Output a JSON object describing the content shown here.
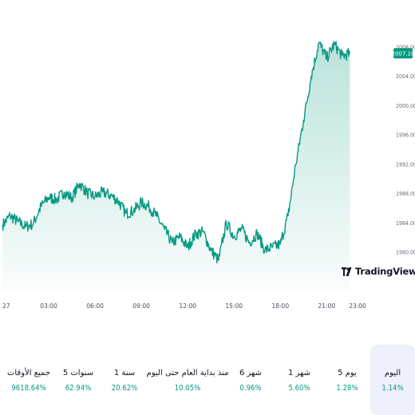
{
  "chart_data": {
    "type": "area",
    "y_ticks": [
      "2008.00",
      "2004.00",
      "2000.00",
      "1996.00",
      "1992.00",
      "1988.00",
      "1984.00",
      "1980.00"
    ],
    "x_ticks": [
      "27",
      "03:00",
      "06:00",
      "09:00",
      "12:00",
      "15:00",
      "18:00",
      "21:00",
      "23:00"
    ],
    "ylim": [
      1978.5,
      2010.5
    ],
    "last_price": "2007.10",
    "line_color": "#089981",
    "grid": false,
    "series": [
      {
        "x": [
          0,
          0.5,
          1,
          1.5,
          2,
          2.5,
          3,
          3.5,
          4,
          4.5,
          5,
          5.5,
          6,
          6.5,
          7,
          7.5,
          8,
          8.5,
          9,
          9.5,
          10,
          10.5,
          11,
          11.5,
          12,
          12.5,
          13,
          13.5,
          14,
          14.5,
          15,
          15.5,
          16,
          16.5,
          17,
          17.5,
          18,
          18.5,
          19,
          19.5,
          20,
          20.5,
          21,
          21.5,
          22,
          22.5
        ],
        "values": [
          1983.7,
          1985.0,
          1984.2,
          1983.5,
          1983.9,
          1986.3,
          1987.5,
          1987.2,
          1988.2,
          1987.4,
          1989.4,
          1988.1,
          1987.6,
          1988.2,
          1987.8,
          1987.0,
          1985.3,
          1985.7,
          1986.8,
          1986.2,
          1984.9,
          1983.1,
          1981.3,
          1982.1,
          1980.7,
          1982.5,
          1982.8,
          1980.3,
          1978.9,
          1984.0,
          1982.2,
          1983.2,
          1981.3,
          1982.6,
          1980.3,
          1980.7,
          1981.1,
          1985.0,
          1992.0,
          1998.0,
          2004.0,
          2008.6,
          2006.5,
          2008.4,
          2006.8,
          2007.1
        ]
      }
    ]
  },
  "brand": {
    "name": "TradingView"
  },
  "performance": [
    {
      "label": "اليوم",
      "value": "1.14%",
      "selected": true
    },
    {
      "label": "5 يوم",
      "value": "1.28%",
      "selected": false
    },
    {
      "label": "1 شهر",
      "value": "5.60%",
      "selected": false
    },
    {
      "label": "6 شهر",
      "value": "0.96%",
      "selected": false
    },
    {
      "label": "منذ بداية العام حتى اليوم",
      "value": "10.05%",
      "selected": false
    },
    {
      "label": "1 سنة",
      "value": "20.62%",
      "selected": false
    },
    {
      "label": "5 سنوات",
      "value": "62.94%",
      "selected": false
    },
    {
      "label": "جميع الأوقات",
      "value": "9618.64%",
      "selected": false
    }
  ]
}
